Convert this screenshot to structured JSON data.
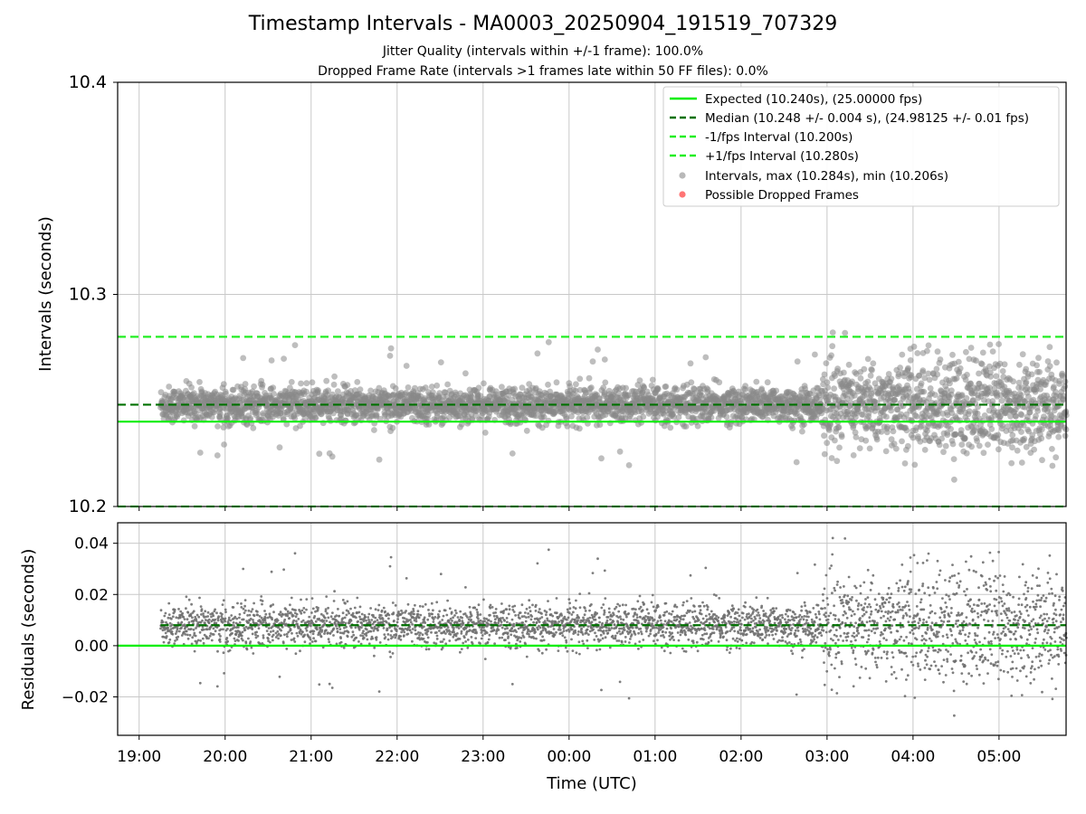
{
  "title": "Timestamp Intervals - MA0003_20250904_191519_707329",
  "subtitle_lines": [
    "Jitter Quality (intervals within +/-1 frame): 100.0%",
    "Dropped Frame Rate (intervals >1 frames late within 50 FF files): 0.0%"
  ],
  "colors": {
    "expected": "#00ee00",
    "median": "#007000",
    "interval_bounds": "#22ee22",
    "intervals": "#888888",
    "residuals": "#707070",
    "dropped": "#ff6666",
    "grid": "#c8c8c8"
  },
  "chart_data": [
    {
      "type": "scatter",
      "ylabel": "Intervals (seconds)",
      "ylim": [
        10.2,
        10.4
      ],
      "yticks": [
        "10.2",
        "10.3",
        "10.4"
      ],
      "xlim_hours": [
        18.75,
        29.78
      ],
      "grid": true,
      "legend_position": "top-right",
      "reference_lines": [
        {
          "name": "Expected (10.240s), (25.00000 fps)",
          "y": 10.24,
          "style": "solid"
        },
        {
          "name": "Median (10.248 +/- 0.004 s), (24.98125 +/- 0.01 fps)",
          "y": 10.248,
          "style": "dashed"
        },
        {
          "name": "-1/fps Interval (10.200s)",
          "y": 10.2,
          "style": "dashed"
        },
        {
          "name": "+1/fps Interval (10.280s)",
          "y": 10.28,
          "style": "dashed"
        }
      ],
      "series": [
        {
          "name": "Intervals, max (10.284s), min (10.206s)",
          "marker": "circle",
          "approx_count": 3700,
          "x_range": [
            "19:15",
            "05:47"
          ],
          "center": 10.248,
          "max": 10.284,
          "min": 10.206
        },
        {
          "name": "Possible Dropped Frames",
          "marker": "circle",
          "values": []
        }
      ]
    },
    {
      "type": "scatter",
      "xlabel": "Time (UTC)",
      "ylabel": "Residuals (seconds)",
      "ylim": [
        -0.035,
        0.048
      ],
      "yticks": [
        "0.04",
        "0.02",
        "0.00",
        "−0.02"
      ],
      "xticks": [
        "19:00",
        "20:00",
        "21:00",
        "22:00",
        "23:00",
        "00:00",
        "01:00",
        "02:00",
        "03:00",
        "04:00",
        "05:00"
      ],
      "grid": true,
      "reference_lines": [
        {
          "name": "zero",
          "y": 0.0,
          "style": "solid"
        },
        {
          "name": "median residual",
          "y": 0.008,
          "style": "dashed"
        }
      ],
      "series": [
        {
          "name": "residuals",
          "x_range": [
            "19:15",
            "05:47"
          ],
          "center": 0.008,
          "max": 0.044,
          "min": -0.034
        }
      ]
    }
  ]
}
